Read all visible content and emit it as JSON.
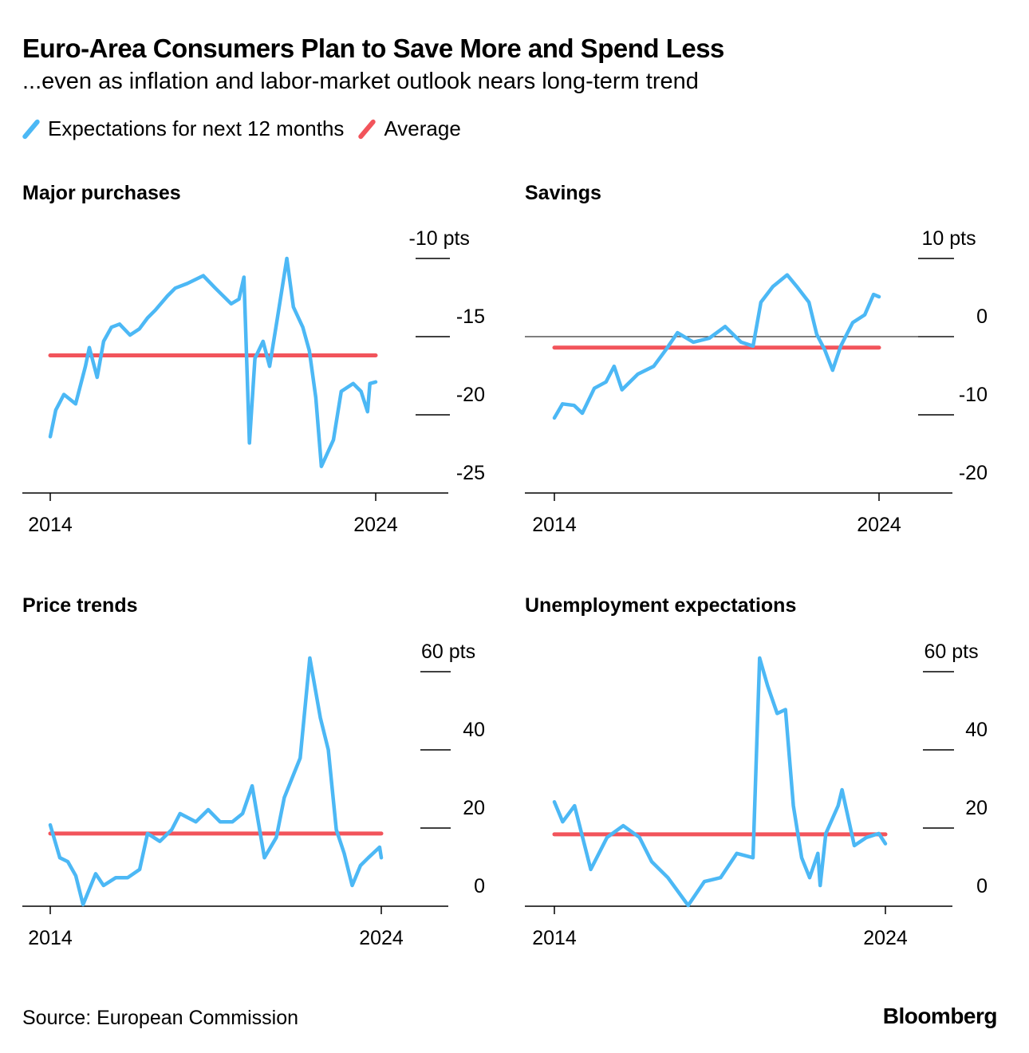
{
  "title": "Euro-Area Consumers Plan to Save More and Spend Less",
  "subtitle": "...even as inflation and labor-market outlook nears long-term trend",
  "legend": [
    {
      "label": "Expectations for next 12 months",
      "color": "#4cb8f5"
    },
    {
      "label": "Average",
      "color": "#f2545b"
    }
  ],
  "source": "Source: European Commission",
  "brand": "Bloomberg",
  "chart_data": [
    {
      "type": "line",
      "title": "Major purchases",
      "x_ticks": [
        "2014",
        "2024"
      ],
      "y_ticks": [
        "-10 pts",
        "-15",
        "-20",
        "-25"
      ],
      "y_tick_values": [
        -10,
        -15,
        -20,
        -25
      ],
      "ylim": [
        -25,
        -10
      ],
      "xlim": [
        2014,
        2024.0
      ],
      "average": -16.2,
      "series": [
        {
          "name": "Expectations for next 12 months",
          "x": [
            2014.0,
            2014.17,
            2014.42,
            2014.78,
            2015.08,
            2015.2,
            2015.44,
            2015.64,
            2015.88,
            2016.13,
            2016.45,
            2016.74,
            2016.99,
            2017.23,
            2017.6,
            2017.84,
            2018.21,
            2018.7,
            2019.07,
            2019.56,
            2019.8,
            2019.95,
            2020.12,
            2020.29,
            2020.54,
            2020.74,
            2020.98,
            2021.27,
            2021.47,
            2021.76,
            2021.96,
            2022.16,
            2022.33,
            2022.7,
            2022.94,
            2023.31,
            2023.55,
            2023.75,
            2023.82,
            2024.0
          ],
          "values": [
            -21.4,
            -19.7,
            -18.7,
            -19.3,
            -16.9,
            -15.7,
            -17.6,
            -15.3,
            -14.4,
            -14.2,
            -14.9,
            -14.5,
            -13.8,
            -13.3,
            -12.4,
            -11.9,
            -11.6,
            -11.1,
            -11.9,
            -12.9,
            -12.6,
            -11.2,
            -21.8,
            -16.4,
            -15.3,
            -16.9,
            -13.8,
            -10.0,
            -13.1,
            -14.4,
            -15.9,
            -18.9,
            -23.3,
            -21.6,
            -18.5,
            -18.0,
            -18.5,
            -19.8,
            -18.0,
            -17.9
          ]
        }
      ]
    },
    {
      "type": "line",
      "title": "Savings",
      "x_ticks": [
        "2014",
        "2024"
      ],
      "y_ticks": [
        "10 pts",
        "0",
        "-10",
        "-20"
      ],
      "y_tick_values": [
        10,
        0,
        -10,
        -20
      ],
      "ylim": [
        -20,
        10
      ],
      "xlim": [
        2014,
        2024.0
      ],
      "zero_line": true,
      "average": -1.4,
      "series": [
        {
          "name": "Expectations for next 12 months",
          "values": [
            -10.4,
            -8.6,
            -8.8,
            -9.8,
            -6.6,
            -5.8,
            -3.8,
            -6.8,
            -4.8,
            -3.8,
            -1.7,
            0.5,
            -0.7,
            -0.2,
            1.3,
            -0.7,
            -1.2,
            4.4,
            6.4,
            7.9,
            6.4,
            4.4,
            0.3,
            -1.7,
            -4.3,
            -1.2,
            1.8,
            2.8,
            5.4,
            5.1
          ],
          "x": [
            2014.0,
            2014.25,
            2014.61,
            2014.86,
            2015.23,
            2015.59,
            2015.84,
            2016.08,
            2016.57,
            2017.06,
            2017.43,
            2017.79,
            2018.28,
            2018.77,
            2019.26,
            2019.75,
            2020.12,
            2020.36,
            2020.73,
            2021.17,
            2021.47,
            2021.84,
            2022.08,
            2022.33,
            2022.57,
            2022.82,
            2023.19,
            2023.56,
            2023.83,
            2024.0
          ]
        }
      ]
    },
    {
      "type": "line",
      "title": "Price trends",
      "x_ticks": [
        "2014",
        "2024"
      ],
      "y_ticks": [
        "60 pts",
        "40",
        "20",
        "0"
      ],
      "y_tick_values": [
        60,
        40,
        20,
        0
      ],
      "ylim": [
        0,
        60
      ],
      "xlim": [
        2014,
        2024.0
      ],
      "average": 18.6,
      "series": [
        {
          "name": "Expectations for next 12 months",
          "x": [
            2014.0,
            2014.29,
            2014.53,
            2014.77,
            2014.99,
            2015.37,
            2015.61,
            2015.98,
            2016.34,
            2016.7,
            2016.94,
            2017.31,
            2017.67,
            2017.92,
            2018.4,
            2018.77,
            2019.13,
            2019.5,
            2019.81,
            2020.1,
            2020.47,
            2020.83,
            2021.07,
            2021.36,
            2021.55,
            2021.84,
            2022.16,
            2022.4,
            2022.64,
            2022.88,
            2023.12,
            2023.37,
            2023.61,
            2023.95,
            2024.0
          ],
          "values": [
            20.8,
            12.4,
            11.4,
            7.8,
            0.4,
            8.3,
            5.3,
            7.3,
            7.3,
            9.4,
            18.6,
            16.6,
            19.6,
            23.7,
            21.6,
            24.7,
            21.6,
            21.6,
            23.7,
            30.8,
            12.4,
            17.6,
            27.8,
            33.9,
            37.9,
            63.5,
            48.2,
            40.0,
            19.6,
            13.5,
            5.3,
            10.4,
            12.4,
            15.1,
            12.4
          ]
        }
      ]
    },
    {
      "type": "line",
      "title": "Unemployment expectations",
      "x_ticks": [
        "2014",
        "2024"
      ],
      "y_ticks": [
        "60 pts",
        "40",
        "20",
        "0"
      ],
      "y_tick_values": [
        60,
        40,
        20,
        0
      ],
      "ylim": [
        0,
        60
      ],
      "xlim": [
        2014,
        2024.0
      ],
      "average": 18.4,
      "series": [
        {
          "name": "Expectations for next 12 months",
          "x": [
            2014.0,
            2014.25,
            2014.61,
            2015.1,
            2015.59,
            2016.08,
            2016.57,
            2016.94,
            2017.43,
            2018.04,
            2018.53,
            2019.02,
            2019.51,
            2020.0,
            2020.2,
            2020.44,
            2020.73,
            2020.98,
            2021.22,
            2021.47,
            2021.71,
            2021.96,
            2022.03,
            2022.2,
            2022.57,
            2022.69,
            2023.06,
            2023.43,
            2023.8,
            2024.0
          ],
          "values": [
            26.7,
            21.6,
            25.7,
            9.4,
            17.6,
            20.6,
            17.6,
            11.4,
            7.3,
            0.2,
            6.3,
            7.3,
            13.5,
            12.4,
            63.5,
            56.4,
            49.3,
            50.3,
            25.7,
            12.4,
            7.3,
            13.5,
            5.3,
            18.6,
            25.7,
            29.8,
            15.5,
            17.6,
            18.6,
            16.0
          ]
        }
      ]
    }
  ]
}
